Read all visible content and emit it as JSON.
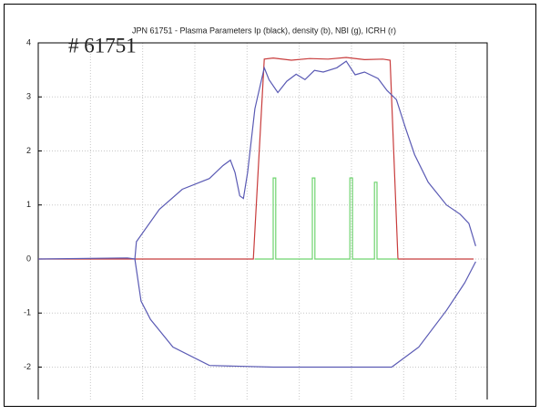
{
  "chart_data": {
    "type": "line",
    "title": "JPN 61751 - Plasma Parameters Ip (black), density (b), NBI (g), ICRH (r)",
    "annotation": "# 61751",
    "xlim": [
      0,
      86
    ],
    "xticks": [
      0,
      10,
      20,
      30,
      40,
      50,
      60,
      70,
      80
    ],
    "ylim": [
      -2.6,
      4
    ],
    "yticks": [
      -2,
      -1,
      0,
      1,
      2,
      3,
      4
    ],
    "grid": true,
    "series": [
      {
        "color": "#c83c3c",
        "x": [
          0,
          41.2,
          43.3,
          45.0,
          48.5,
          52.0,
          55.5,
          59.0,
          62.5,
          66.0,
          67.4,
          68.9,
          83.4
        ],
        "values": [
          0,
          0,
          3.7,
          3.72,
          3.68,
          3.71,
          3.7,
          3.73,
          3.69,
          3.7,
          3.68,
          0,
          0
        ]
      },
      {
        "color": "#6fd46f",
        "x": [
          41.5,
          45.0,
          45.0,
          45.5,
          45.5,
          52.5,
          52.5,
          53.0,
          53.0,
          59.7,
          59.7,
          60.2,
          60.2,
          64.4,
          64.4,
          64.9,
          64.9,
          68.9
        ],
        "values": [
          0,
          0,
          1.5,
          1.5,
          0,
          0,
          1.5,
          1.5,
          0,
          0,
          1.5,
          1.5,
          0,
          0,
          1.42,
          1.42,
          0,
          0
        ]
      },
      {
        "color": "#5a5ab4",
        "x": [
          0,
          17.1,
          18.5,
          18.8,
          23.2,
          27.6,
          32.8,
          35.4,
          36.8,
          37.7,
          38.6,
          39.3,
          40.1,
          41.5,
          43.3,
          44.2,
          45.9,
          47.6,
          49.4,
          51.1,
          52.9,
          54.6,
          57.2,
          59.0,
          60.7,
          62.5,
          65.1,
          66.8,
          68.6,
          70.3,
          72.1,
          74.7,
          78.2,
          80.8,
          82.5,
          83.8
        ],
        "values": [
          0,
          0.02,
          0,
          0.32,
          0.92,
          1.29,
          1.49,
          1.73,
          1.83,
          1.6,
          1.17,
          1.12,
          1.6,
          2.78,
          3.54,
          3.32,
          3.08,
          3.29,
          3.42,
          3.32,
          3.49,
          3.46,
          3.54,
          3.66,
          3.41,
          3.46,
          3.34,
          3.12,
          2.95,
          2.44,
          1.93,
          1.42,
          1.0,
          0.83,
          0.66,
          0.24
        ]
      },
      {
        "color": "#5a5ab4",
        "x": [
          18.5,
          19.7,
          21.5,
          25.8,
          32.8,
          45.0,
          67.7,
          72.9,
          78.2,
          81.7,
          83.8
        ],
        "values": [
          0,
          -0.78,
          -1.12,
          -1.63,
          -1.97,
          -2.0,
          -2.0,
          -1.63,
          -0.95,
          -0.44,
          -0.05
        ]
      }
    ]
  }
}
